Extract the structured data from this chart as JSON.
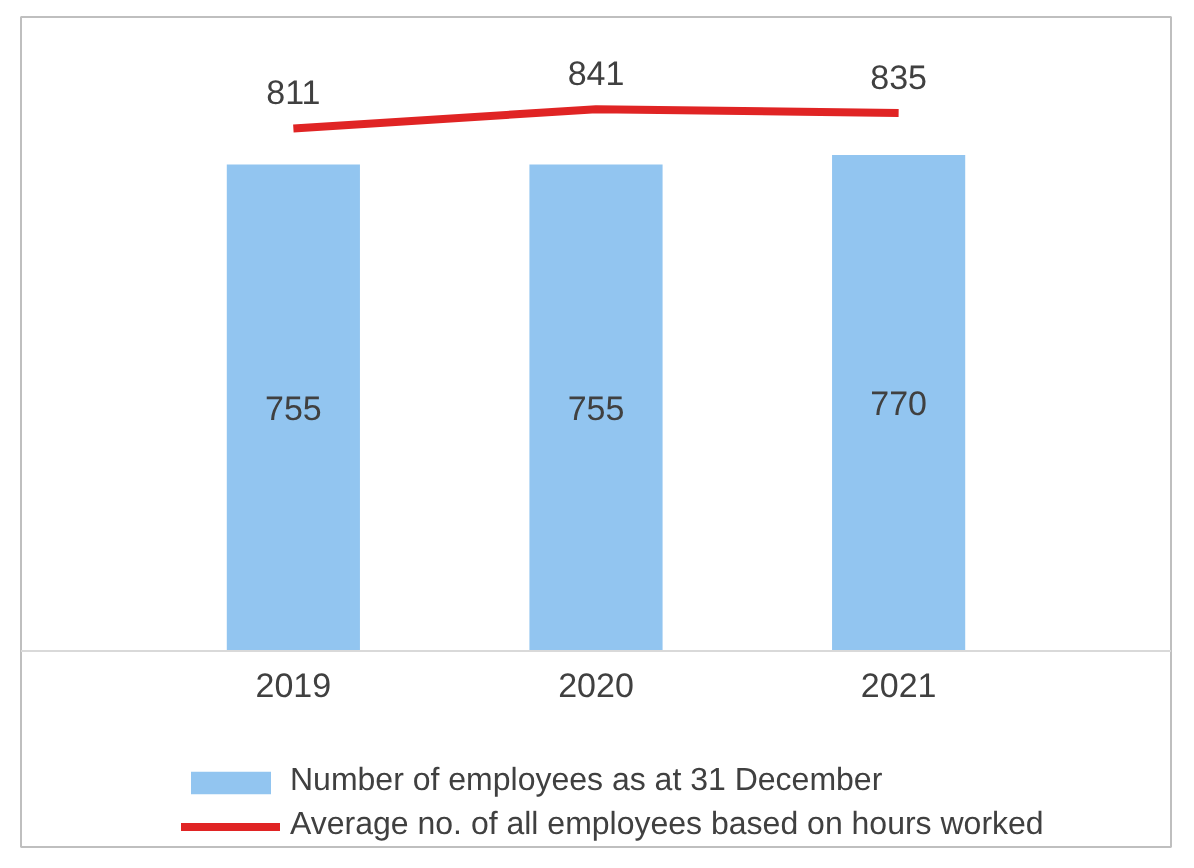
{
  "chart_data": {
    "type": "bar",
    "categories": [
      "2019",
      "2020",
      "2021"
    ],
    "series": [
      {
        "name": "Number of employees as at 31 December",
        "color": "#92c5f0",
        "values": [
          755,
          755,
          770
        ]
      },
      {
        "name": "Average no. of all employees based on hours worked",
        "type": "line",
        "color": "#e02424",
        "values": [
          811,
          841,
          835
        ]
      }
    ],
    "tick_labels": "x",
    "legend": "bottom",
    "data_labels": true,
    "line_style": "solid"
  }
}
